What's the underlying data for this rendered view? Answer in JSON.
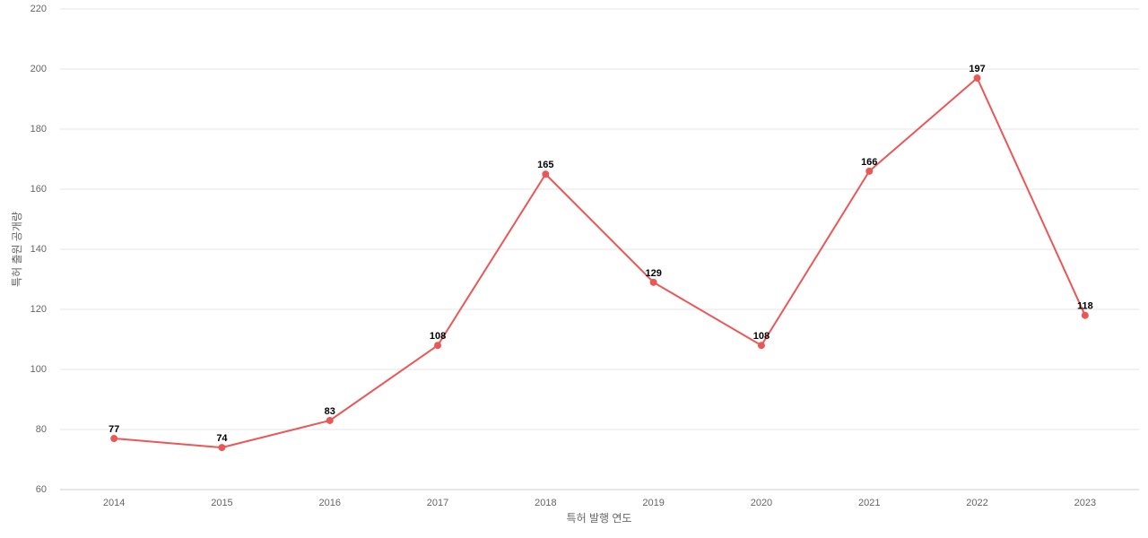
{
  "chart_data": {
    "type": "line",
    "x_label": "특허 발행 연도",
    "y_label": "특허 출원 공개량",
    "categories": [
      "2014",
      "2015",
      "2016",
      "2017",
      "2018",
      "2019",
      "2020",
      "2021",
      "2022",
      "2023"
    ],
    "series": [
      {
        "color": "#eb5757",
        "values": [
          77,
          74,
          83,
          108,
          165,
          129,
          108,
          166,
          197,
          118
        ]
      }
    ],
    "ylim": [
      60,
      220
    ],
    "yticks": [
      60,
      80,
      100,
      120,
      140,
      160,
      180,
      200,
      220
    ],
    "grid": true
  }
}
